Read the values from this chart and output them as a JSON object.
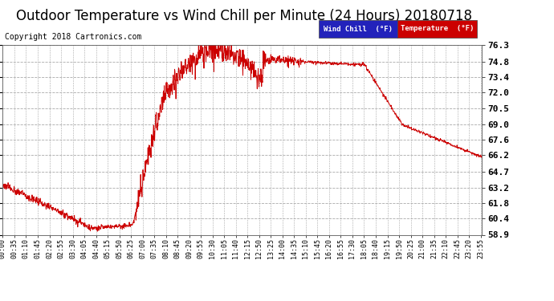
{
  "title": "Outdoor Temperature vs Wind Chill per Minute (24 Hours) 20180718",
  "copyright": "Copyright 2018 Cartronics.com",
  "ylim": [
    58.9,
    76.3
  ],
  "yticks": [
    58.9,
    60.4,
    61.8,
    63.2,
    64.7,
    66.2,
    67.6,
    69.0,
    70.5,
    72.0,
    73.4,
    74.8,
    76.3
  ],
  "line_color": "#cc0000",
  "fig_bg_color": "#ffffff",
  "plot_bg_color": "#ffffff",
  "legend_wind_bg": "#2222bb",
  "legend_temp_bg": "#cc0000",
  "legend_wind_text": "Wind Chill  (°F)",
  "legend_temp_text": "Temperature  (°F)",
  "title_fontsize": 12,
  "copyright_fontsize": 7,
  "xtick_fontsize": 6,
  "ytick_fontsize": 8,
  "tick_step_minutes": 35
}
